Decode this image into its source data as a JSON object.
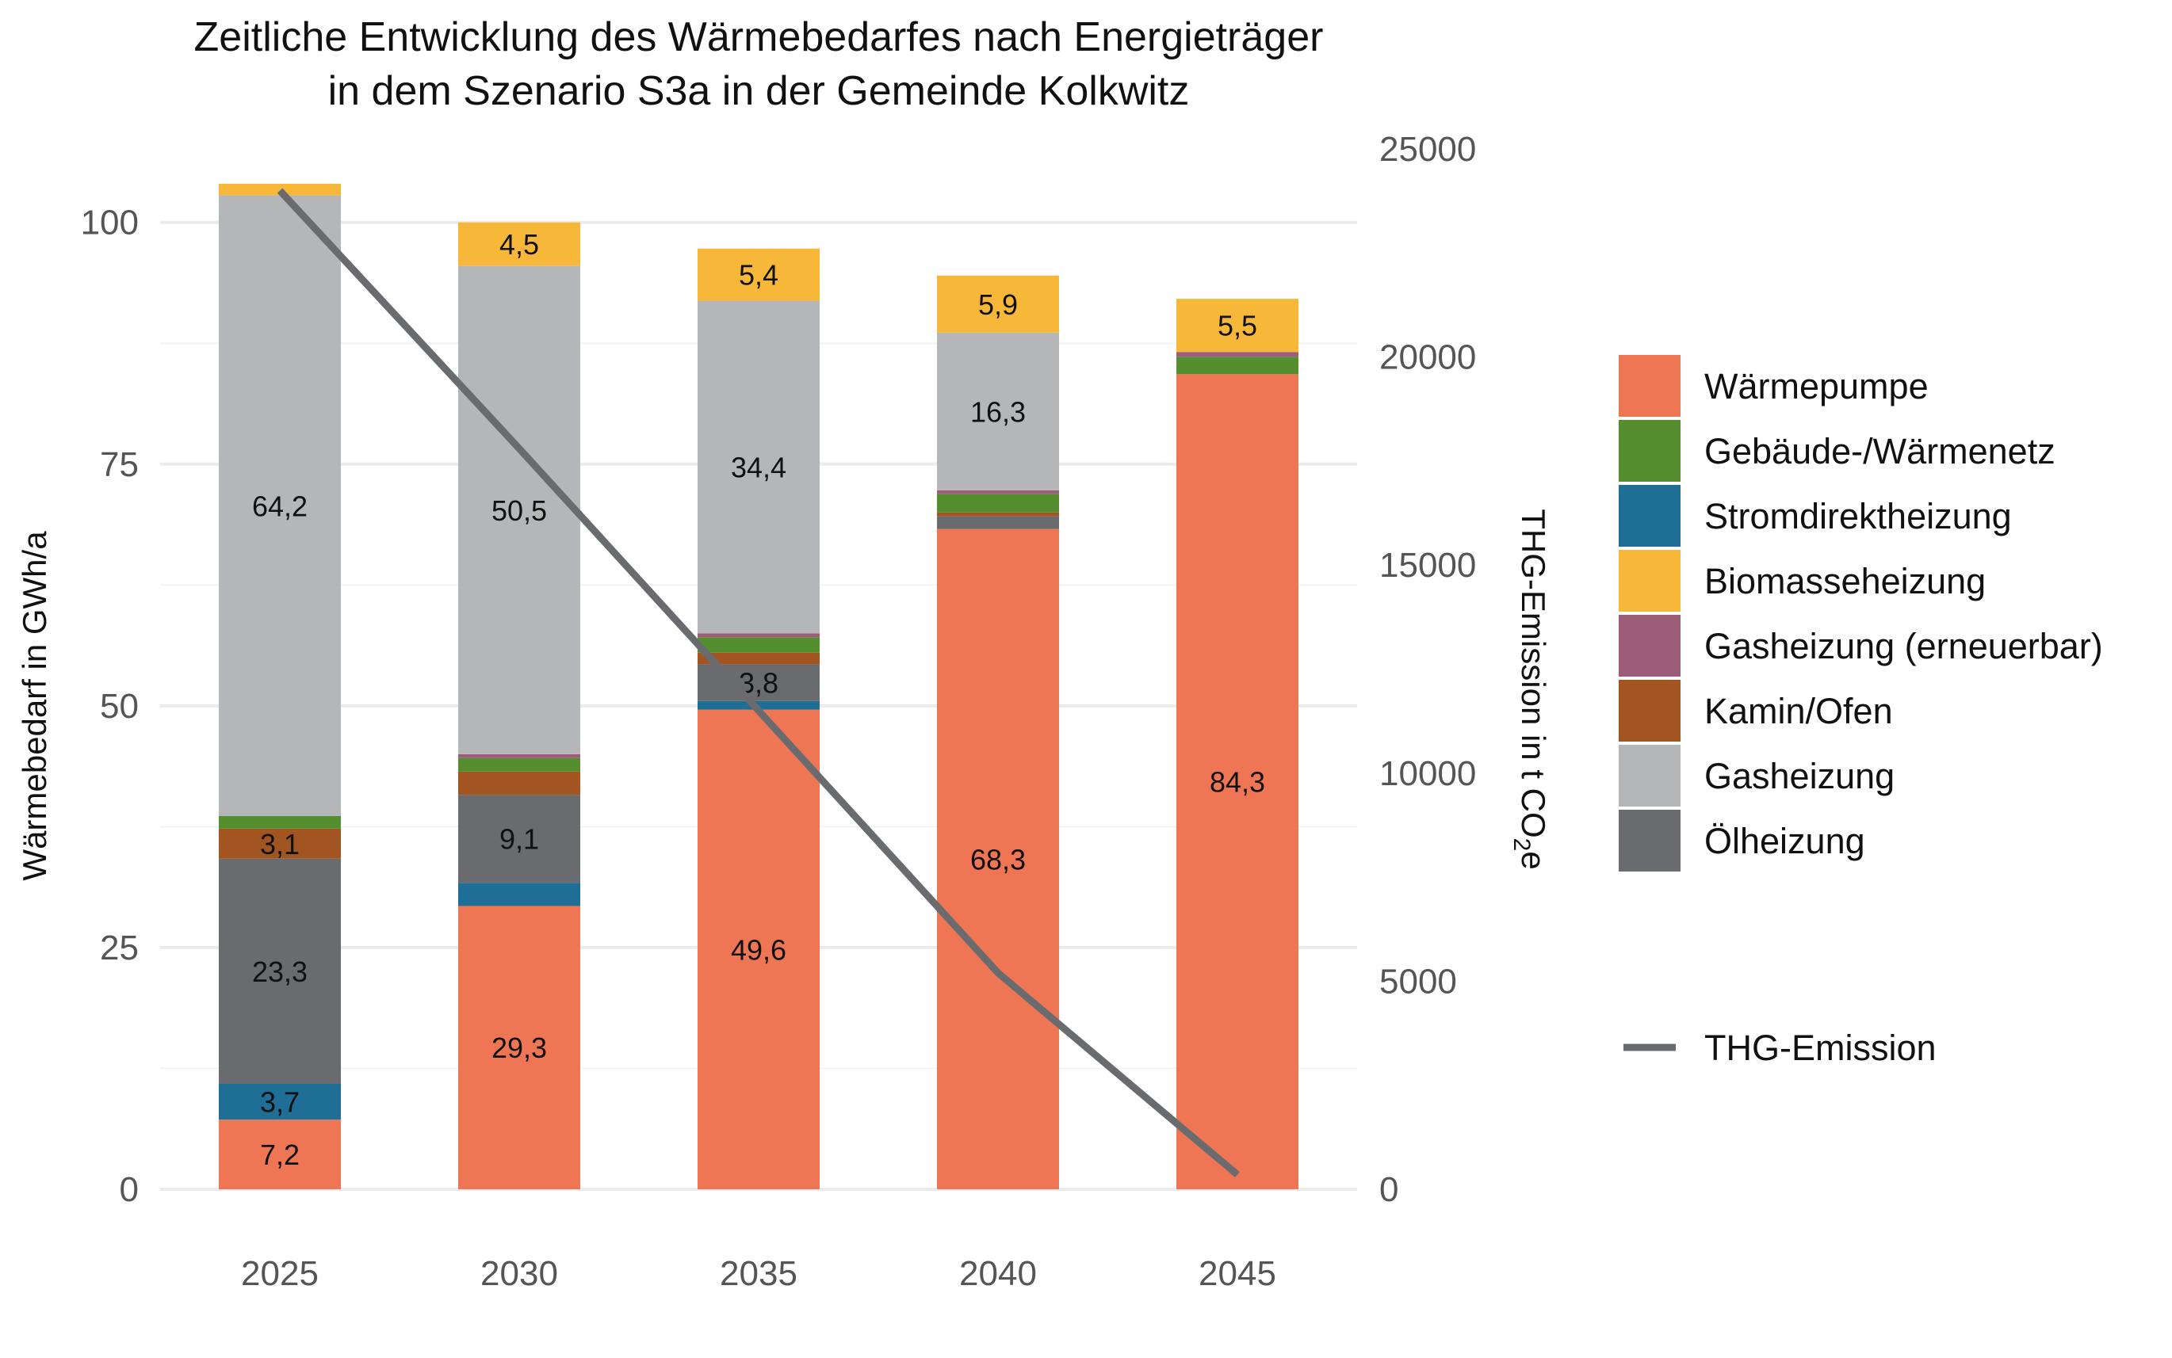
{
  "chart_data": {
    "type": "bar",
    "stacked": true,
    "title": [
      "Zeitliche Entwicklung des Wärmebedarfes nach Energieträger",
      "in dem Szenario S3a in der Gemeinde Kolkwitz"
    ],
    "xlabel": "",
    "ylabel": "Wärmebedarf in GWh/a",
    "y2label": "THG-Emission in t CO",
    "y2label_sub": "2",
    "y2label_suffix": "e",
    "categories": [
      "2025",
      "2030",
      "2035",
      "2040",
      "2045"
    ],
    "ylim": [
      0,
      107.6
    ],
    "yticks": [
      0,
      25,
      50,
      75,
      100
    ],
    "y2lim": [
      0,
      25000
    ],
    "y2ticks": [
      0,
      5000,
      10000,
      15000,
      20000,
      25000
    ],
    "grid": true,
    "legend_placement": "right",
    "series": [
      {
        "name": "Wärmepumpe",
        "color": "#ee7655",
        "values": [
          7.2,
          29.3,
          49.6,
          68.3,
          84.3
        ],
        "labels": [
          "7,2",
          "29,3",
          "49,6",
          "68,3",
          "84,3"
        ]
      },
      {
        "name": "Stromdirektheizung",
        "color": "#1f6e96",
        "values": [
          3.7,
          2.4,
          0.9,
          0,
          0
        ],
        "labels": [
          "3,7",
          "",
          "",
          "",
          ""
        ]
      },
      {
        "name": "Ölheizung",
        "color": "#6a6b6f",
        "values": [
          23.3,
          9.1,
          3.8,
          1.3,
          0
        ],
        "labels": [
          "23,3",
          "9,1",
          "3,8",
          "",
          ""
        ]
      },
      {
        "name": "Kamin/Ofen",
        "color": "#a25520",
        "values": [
          3.1,
          2.4,
          1.2,
          0.4,
          0
        ],
        "labels": [
          "3,1",
          "",
          "",
          "",
          ""
        ]
      },
      {
        "name": "Gebäude-/Wärmenetz",
        "color": "#548e2e",
        "values": [
          1.3,
          1.4,
          1.6,
          1.9,
          1.8
        ],
        "labels": [
          "",
          "",
          "",
          "",
          ""
        ]
      },
      {
        "name": "Gasheizung (erneuerbar)",
        "color": "#9c5d78",
        "values": [
          0,
          0.4,
          0.4,
          0.4,
          0.5
        ],
        "labels": [
          "",
          "",
          "",
          "",
          ""
        ]
      },
      {
        "name": "Gasheizung",
        "color": "#b5b6b8",
        "values": [
          64.2,
          50.5,
          34.4,
          16.3,
          0
        ],
        "labels": [
          "64,2",
          "50,5",
          "34,4",
          "16,3",
          ""
        ]
      },
      {
        "name": "Biomasseheizung",
        "color": "#f7b83a",
        "values": [
          1.2,
          4.5,
          5.4,
          5.9,
          5.5
        ],
        "labels": [
          "",
          "4,5",
          "5,4",
          "5,9",
          "5,5"
        ]
      }
    ],
    "legend_order": [
      "Wärmepumpe",
      "Gebäude-/Wärmenetz",
      "Stromdirektheizung",
      "Biomasseheizung",
      "Gasheizung (erneuerbar)",
      "Kamin/Ofen",
      "Gasheizung",
      "Ölheizung"
    ],
    "line": {
      "name": "THG-Emission",
      "color": "#6a6b6f",
      "axis": "right",
      "values": [
        24000,
        17800,
        11500,
        5200,
        350
      ]
    }
  }
}
